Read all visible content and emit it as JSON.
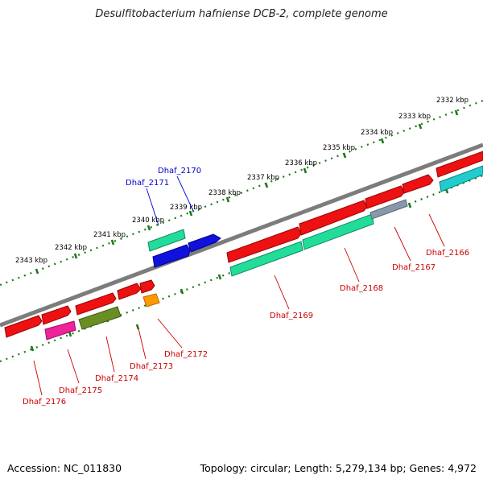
{
  "title": "Desulfitobacterium hafniense DCB-2, complete genome",
  "footer": {
    "accession": "Accession: NC_011830",
    "summary": "Topology: circular; Length: 5,279,134 bp; Genes: 4,972"
  },
  "ruler": [
    {
      "label": "2343 kbp"
    },
    {
      "label": "2342 kbp"
    },
    {
      "label": "2341 kbp"
    },
    {
      "label": "2340 kbp"
    },
    {
      "label": "2339 kbp"
    },
    {
      "label": "2338 kbp"
    },
    {
      "label": "2337 kbp"
    },
    {
      "label": "2336 kbp"
    },
    {
      "label": "2335 kbp"
    },
    {
      "label": "2334 kbp"
    },
    {
      "label": "2333 kbp"
    },
    {
      "label": "2332 kbp"
    }
  ],
  "genes": [
    {
      "label": "Dhaf_2170",
      "color": "#0000cc"
    },
    {
      "label": "Dhaf_2171",
      "color": "#0000cc"
    },
    {
      "label": "Dhaf_2166",
      "color": "#cc0000"
    },
    {
      "label": "Dhaf_2167",
      "color": "#cc0000"
    },
    {
      "label": "Dhaf_2168",
      "color": "#cc0000"
    },
    {
      "label": "Dhaf_2169",
      "color": "#cc0000"
    },
    {
      "label": "Dhaf_2172",
      "color": "#cc0000"
    },
    {
      "label": "Dhaf_2173",
      "color": "#cc0000"
    },
    {
      "label": "Dhaf_2174",
      "color": "#cc0000"
    },
    {
      "label": "Dhaf_2175",
      "color": "#cc0000"
    },
    {
      "label": "Dhaf_2176",
      "color": "#cc0000"
    }
  ],
  "colors": {
    "backbone": "#7a7a7a",
    "tick": "#1a7a1a",
    "red": "#ee1111",
    "teal": "#22dd99",
    "blue": "#1111dd",
    "cyan": "#22cccc",
    "olive": "#6b8e23",
    "pink": "#ee2299",
    "orange": "#ff9900",
    "steel": "#8899aa"
  }
}
